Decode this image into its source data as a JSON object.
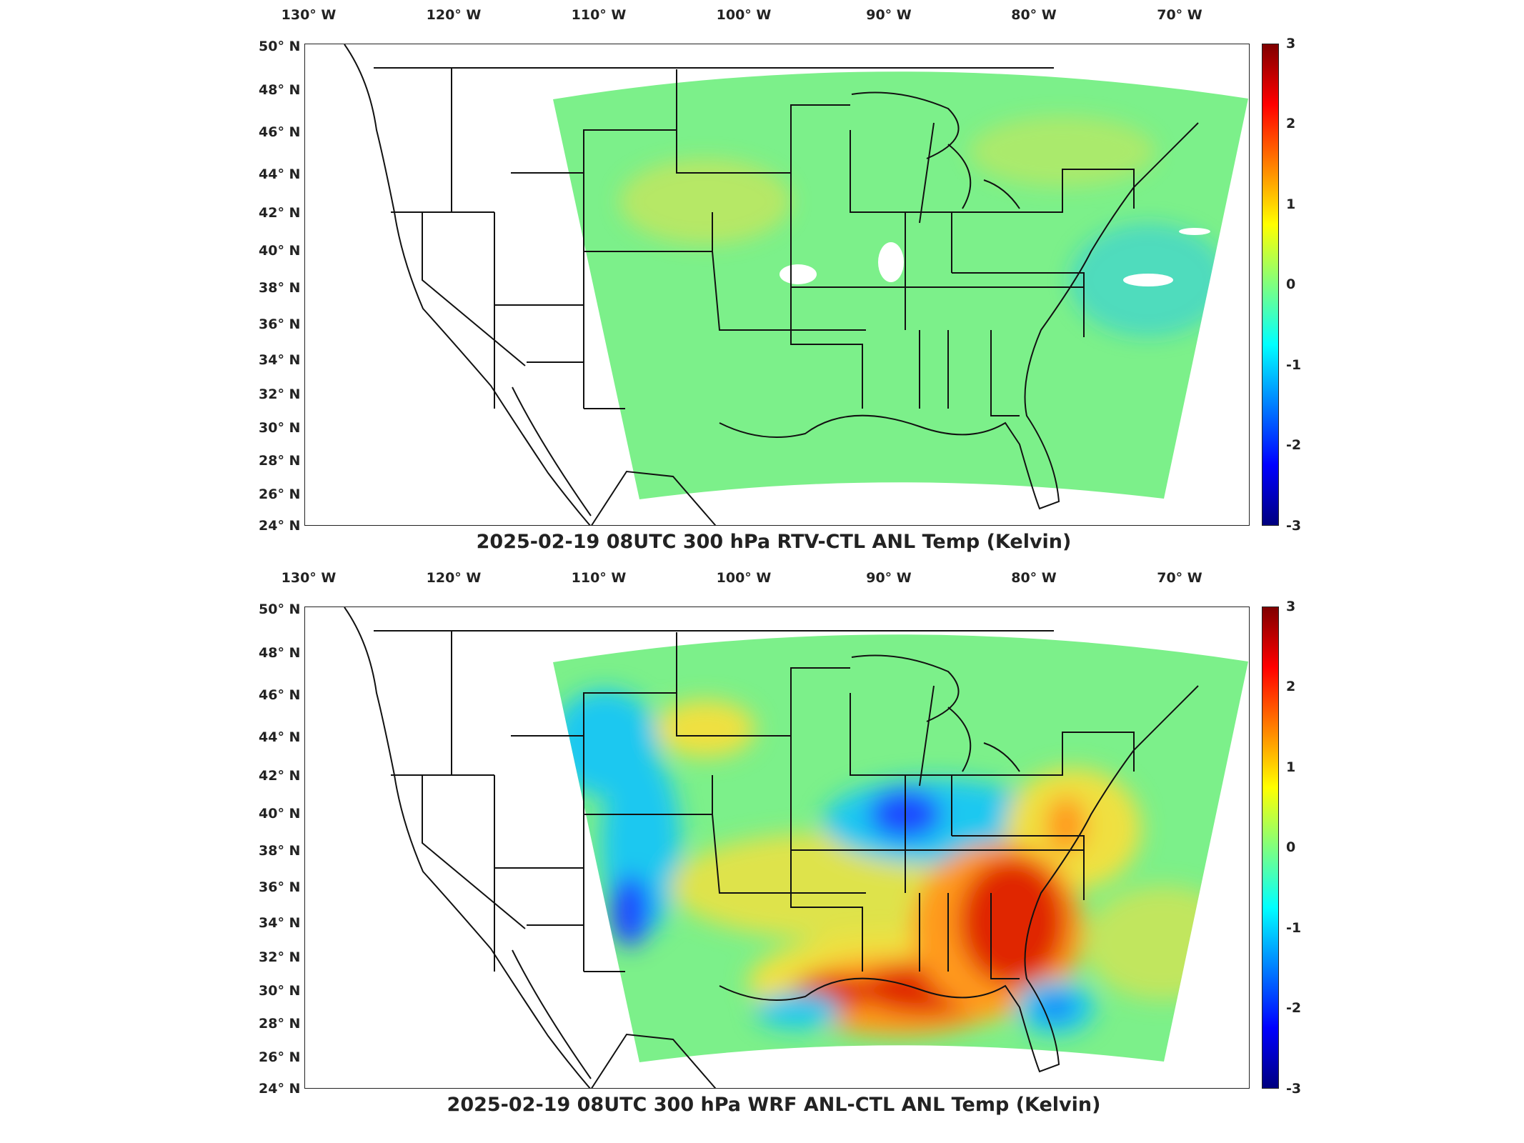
{
  "panels": [
    {
      "title": "2025-02-19 08UTC 300 hPa RTV-CTL ANL Temp (Kelvin)",
      "field": "uniform"
    },
    {
      "title": "2025-02-19 08UTC 300 hPa WRF ANL-CTL ANL Temp (Kelvin)",
      "field": "anomalies"
    }
  ],
  "lon_labels": [
    "130° W",
    "120° W",
    "110° W",
    "100° W",
    "90° W",
    "80° W",
    "70° W"
  ],
  "lat_labels": [
    "50° N",
    "48° N",
    "46° N",
    "44° N",
    "42° N",
    "40° N",
    "38° N",
    "36° N",
    "34° N",
    "32° N",
    "30° N",
    "28° N",
    "26° N",
    "24° N"
  ],
  "colorbar": {
    "ticks": [
      "3",
      "2",
      "1",
      "0",
      "-1",
      "-2",
      "-3"
    ],
    "range": [
      -3,
      3
    ],
    "colormap": "jet"
  },
  "colors": {
    "field_neutral": "#7cf08a",
    "positive_strong": "#e02800",
    "positive_mid": "#ff9a1a",
    "positive_weak": "#f0e040",
    "negative_mid": "#1ec8f0",
    "negative_strong": "#1a4cff",
    "land_lines": "#111111"
  }
}
